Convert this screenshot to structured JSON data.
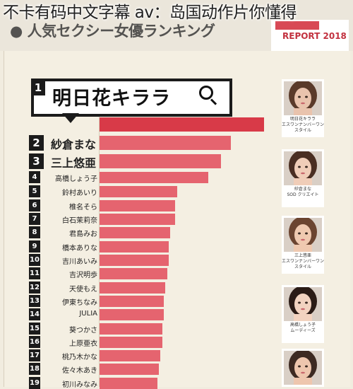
{
  "overlay_title": "不卡有码中文字幕 av：岛国动作片你懂得",
  "header": {
    "subtitle": "● 人気セクシー女優ランキング",
    "report_label": "REPORT 2018"
  },
  "chart_data": {
    "type": "bar",
    "orientation": "horizontal",
    "title": "",
    "xlabel": "",
    "ylabel": "",
    "xlim": [
      0,
      100
    ],
    "ranks": [
      "1",
      "2",
      "3",
      "4",
      "5",
      "6",
      "7",
      "8",
      "9",
      "10",
      "11",
      "12",
      "13",
      "14",
      "15",
      "16",
      "17",
      "18",
      "19"
    ],
    "categories": [
      "明日花キララ",
      "紗倉まな",
      "三上悠亜",
      "高橋しょう子",
      "鈴村あいり",
      "椎名そら",
      "白石茉莉奈",
      "君島みお",
      "橋本ありな",
      "吉川あいみ",
      "吉沢明歩",
      "天使もえ",
      "伊東ちなみ",
      "JULIA",
      "葵つかさ",
      "上原亜衣",
      "桃乃木かな",
      "佐々木あき",
      "初川みなみ"
    ],
    "values": [
      100,
      80,
      74,
      66,
      47,
      46,
      46,
      43,
      42,
      42,
      41,
      40,
      39,
      39,
      38,
      38,
      37,
      36,
      35
    ]
  },
  "photos": [
    {
      "caption": "明日花キララ\nエスワンナンバーワン\nスタイル",
      "skin": "#e9c3ad",
      "hair": "#5a3a2a"
    },
    {
      "caption": "紗倉まな\nSOD クリエイト",
      "skin": "#f0cdb8",
      "hair": "#4a2e22"
    },
    {
      "caption": "三上悠亜\nエスワンナンバーワン\nスタイル",
      "skin": "#efc9b0",
      "hair": "#6b4430"
    },
    {
      "caption": "高橋しょう子\nムーディーズ",
      "skin": "#f2d3c0",
      "hair": "#2a1b16"
    },
    {
      "caption": "",
      "skin": "#eec6ae",
      "hair": "#3d2a22"
    }
  ],
  "colors": {
    "bar": "#e5646f",
    "bar_first": "#d83a48",
    "rank_badge": "#1b1b1b"
  }
}
